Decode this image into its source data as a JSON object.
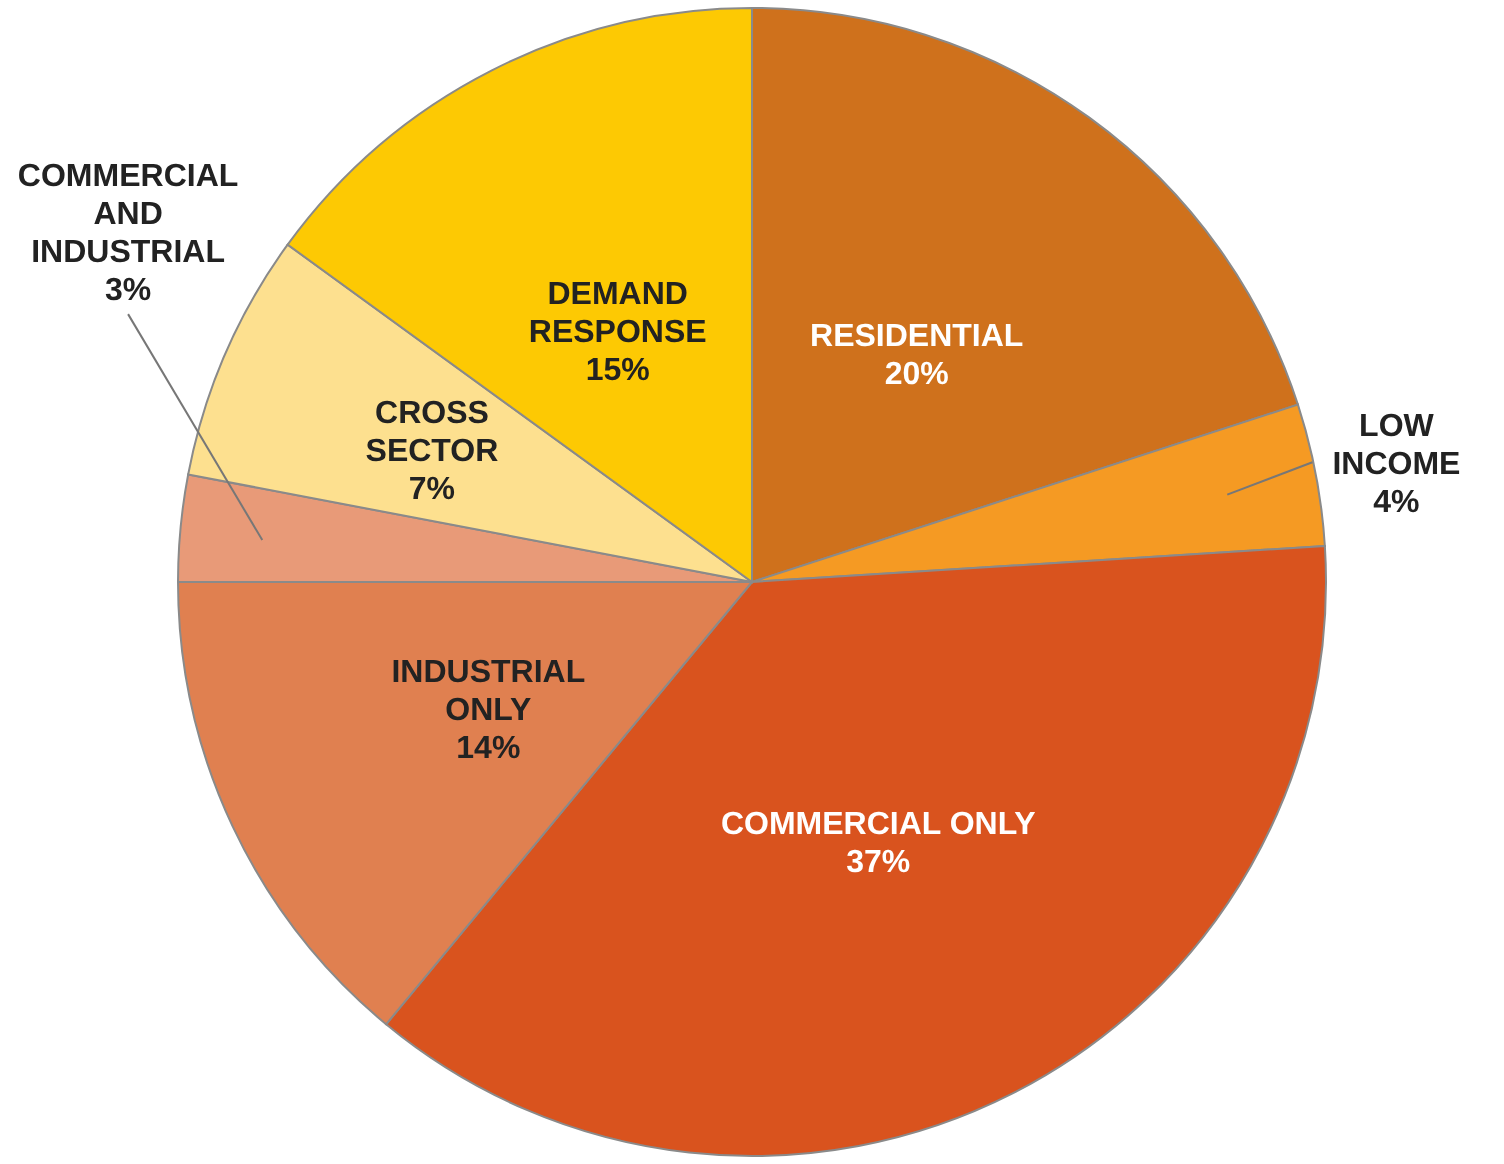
{
  "chart_data": {
    "type": "pie",
    "categories": [
      "RESIDENTIAL",
      "LOW INCOME",
      "COMMERCIAL ONLY",
      "INDUSTRIAL ONLY",
      "COMMERCIAL AND INDUSTRIAL",
      "CROSS SECTOR",
      "DEMAND RESPONSE"
    ],
    "values": [
      20,
      4,
      37,
      14,
      3,
      7,
      15
    ],
    "colors": [
      "#cf711c",
      "#f59a23",
      "#d9531e",
      "#e08050",
      "#e89a78",
      "#fde08f",
      "#fdc903"
    ],
    "value_labels": [
      "20%",
      "4%",
      "37%",
      "14%",
      "3%",
      "7%",
      "15%"
    ]
  }
}
